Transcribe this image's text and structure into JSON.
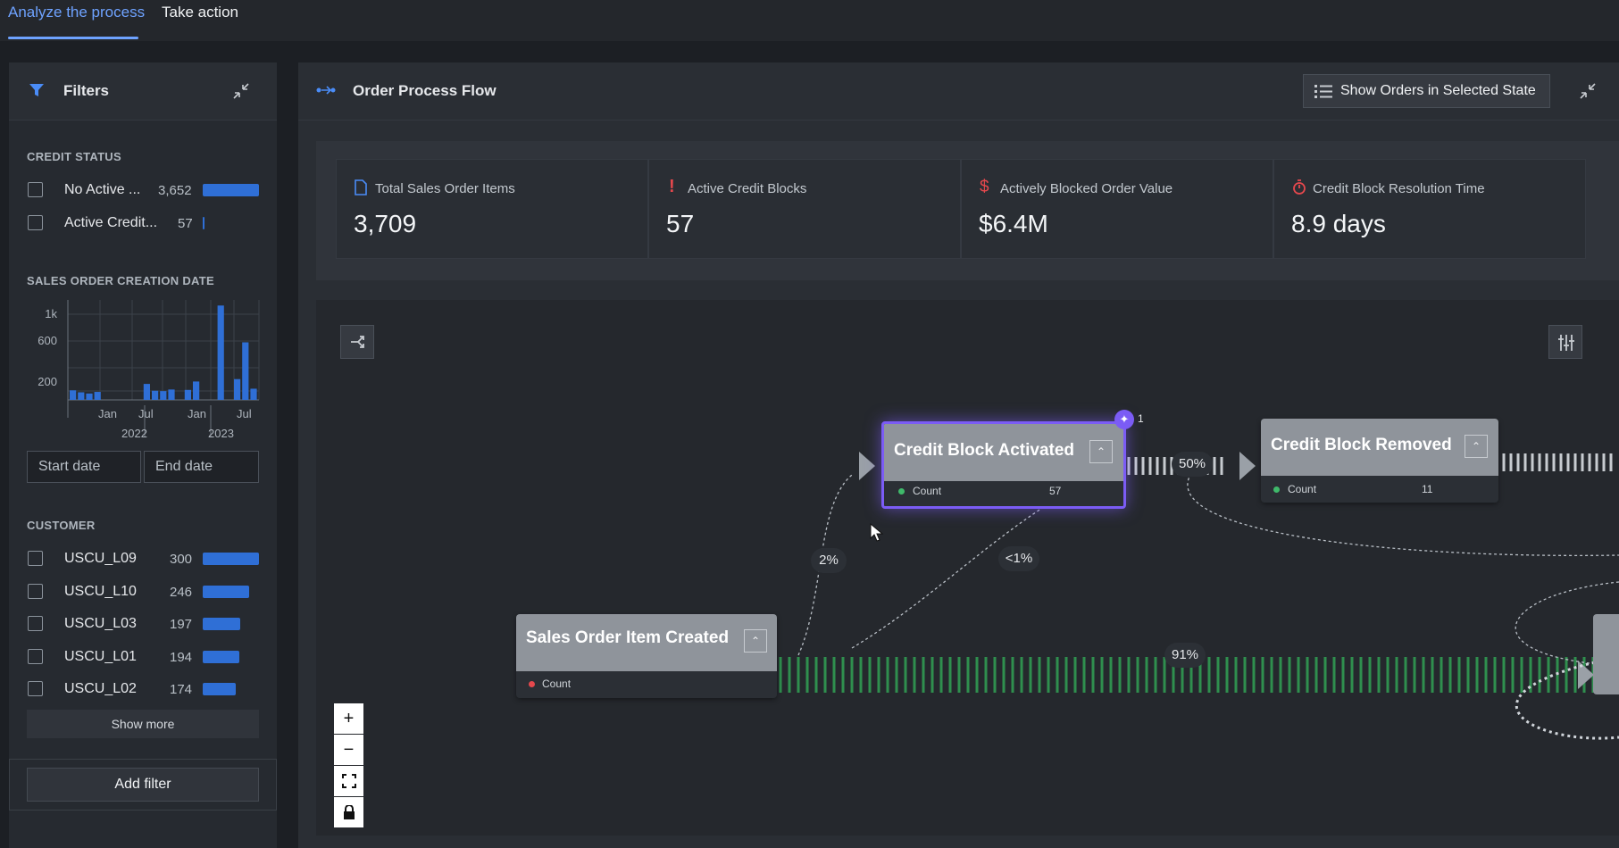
{
  "tabs": [
    {
      "label": "Analyze the process",
      "active": true
    },
    {
      "label": "Take action",
      "active": false
    }
  ],
  "filters": {
    "title": "Filters",
    "credit_status": {
      "title": "CREDIT STATUS",
      "items": [
        {
          "label": "No Active ...",
          "count": "3,652",
          "fraction": 1.0
        },
        {
          "label": "Active Credit...",
          "count": "57",
          "fraction": 0.016
        }
      ]
    },
    "date": {
      "title": "SALES ORDER CREATION DATE",
      "y_ticks": [
        "1k",
        "600",
        "200"
      ],
      "month_ticks": [
        "Jan",
        "Jul",
        "Jan",
        "Jul"
      ],
      "year_ticks": [
        "2022",
        "2023"
      ],
      "start_placeholder": "Start date",
      "end_placeholder": "End date"
    },
    "customer": {
      "title": "CUSTOMER",
      "items": [
        {
          "label": "USCU_L09",
          "count": "300",
          "fraction": 1.0
        },
        {
          "label": "USCU_L10",
          "count": "246",
          "fraction": 0.82
        },
        {
          "label": "USCU_L03",
          "count": "197",
          "fraction": 0.66
        },
        {
          "label": "USCU_L01",
          "count": "194",
          "fraction": 0.65
        },
        {
          "label": "USCU_L02",
          "count": "174",
          "fraction": 0.58
        }
      ],
      "show_more": "Show more"
    },
    "add_filter": "Add filter"
  },
  "main": {
    "title": "Order Process Flow",
    "show_orders_button": "Show Orders in Selected State",
    "kpis": [
      {
        "label": "Total Sales Order Items",
        "value": "3,709",
        "icon": "document-icon",
        "color": "#4a8cf7"
      },
      {
        "label": "Active Credit Blocks",
        "value": "57",
        "icon": "exclamation-icon",
        "color": "#e5484d"
      },
      {
        "label": "Actively Blocked Order Value",
        "value": "$6.4M",
        "icon": "dollar-icon",
        "color": "#e5484d"
      },
      {
        "label": "Credit Block Resolution Time",
        "value": "8.9 days",
        "icon": "stopwatch-icon",
        "color": "#e5484d"
      }
    ]
  },
  "flow": {
    "nodes": {
      "credit_block_activated": {
        "title": "Credit Block Activated",
        "count_label": "Count",
        "count": "57",
        "badge": "1"
      },
      "credit_block_removed": {
        "title": "Credit Block Removed",
        "count_label": "Count",
        "count": "11"
      },
      "sales_order_item_created": {
        "title": "Sales Order Item Created",
        "count_label": "Count"
      }
    },
    "edges": {
      "created_to_activated": "2%",
      "created_to_activated_2": "<1%",
      "activated_to_removed": "50%",
      "created_to_next": "91%"
    },
    "zoom": {
      "plus": "+",
      "minus": "−"
    }
  },
  "colors": {
    "accent": "#6ea2ff",
    "bar": "#2f6fd6",
    "selected": "#7b5cf5",
    "flow_green": "#2f8f4e"
  },
  "histogram_values": [
    120,
    95,
    80,
    100,
    0,
    0,
    0,
    0,
    0,
    200,
    115,
    110,
    130,
    0,
    125,
    230,
    0,
    0,
    1180,
    0,
    260,
    720,
    140
  ]
}
